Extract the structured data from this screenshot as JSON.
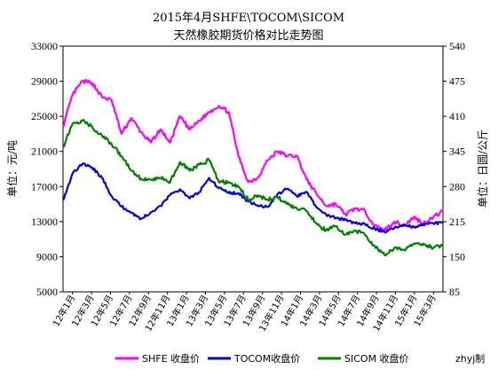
{
  "chart_data": {
    "type": "line",
    "title": "2015年4月SHFE\\TOCOM\\SICOM",
    "subtitle": "天然橡胶期货价格对比走势图",
    "ylabel": "单位：元/吨",
    "y2label": "单位：日圆/公斤",
    "ylim": [
      5000,
      33000
    ],
    "y2lim": [
      85,
      540
    ],
    "yticks": [
      5000,
      9000,
      13000,
      17000,
      21000,
      25000,
      29000,
      33000
    ],
    "y2ticks": [
      85,
      150,
      215,
      280,
      345,
      410,
      475,
      540
    ],
    "x_tick_labels": [
      "12年1月",
      "12年3月",
      "12年5月",
      "12年7月",
      "12年9月",
      "12年11月",
      "13年1月",
      "13年3月",
      "13年5月",
      "13年7月",
      "13年9月",
      "13年11月",
      "14年1月",
      "14年3月",
      "14年5月",
      "14年7月",
      "14年9月",
      "14年11月",
      "15年1月",
      "15年3月"
    ],
    "x": [
      0,
      1,
      2,
      3,
      4,
      5,
      6,
      7,
      8,
      9,
      10,
      11,
      12,
      13,
      14,
      15,
      16,
      17,
      18,
      19,
      20,
      21,
      22,
      23,
      24,
      25,
      26,
      27,
      28,
      29,
      30,
      31,
      32,
      33,
      34,
      35,
      36,
      37,
      38,
      39
    ],
    "series": [
      {
        "name": "SHFE 收盘价",
        "axis": "left",
        "color": "#ff00ff",
        "values": [
          23800,
          27500,
          29000,
          28800,
          27200,
          26800,
          23000,
          24800,
          23200,
          22000,
          23500,
          22000,
          25000,
          23500,
          24500,
          25500,
          26200,
          25500,
          20500,
          17500,
          18000,
          20000,
          21000,
          20500,
          20500,
          17800,
          16200,
          14800,
          15000,
          13800,
          14500,
          14200,
          12500,
          12000,
          13000,
          12500,
          13500,
          12800,
          13500,
          14200
        ]
      },
      {
        "name": "TOCOM收盘价",
        "axis": "right",
        "color": "#0000dd",
        "values": [
          255,
          305,
          322,
          315,
          296,
          262,
          243,
          232,
          220,
          232,
          244,
          264,
          275,
          258,
          270,
          296,
          277,
          268,
          268,
          252,
          245,
          242,
          265,
          276,
          262,
          270,
          242,
          228,
          222,
          218,
          212,
          210,
          202,
          196,
          203,
          210,
          205,
          210,
          212,
          212
        ]
      },
      {
        "name": "SICOM 收盘价",
        "axis": "left",
        "color": "#008000",
        "values": [
          21500,
          24200,
          24500,
          23800,
          22800,
          21800,
          20500,
          18800,
          17900,
          17800,
          18000,
          17500,
          19800,
          18800,
          19500,
          20000,
          17500,
          17500,
          17000,
          15500,
          16000,
          15500,
          15800,
          15000,
          14500,
          14200,
          12800,
          12000,
          12500,
          11500,
          12000,
          11500,
          10200,
          9200,
          10000,
          9800,
          10500,
          10500,
          10000,
          10200
        ]
      }
    ],
    "legend_position": "bottom",
    "grid": false
  },
  "watermark": "zhyj制"
}
